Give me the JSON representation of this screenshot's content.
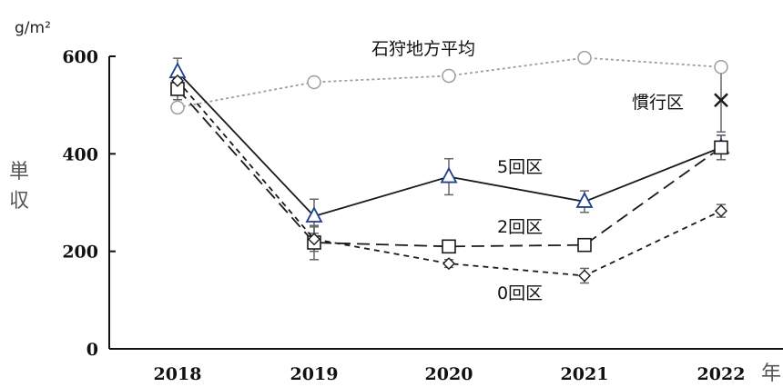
{
  "chart_data": {
    "type": "line",
    "unit_label": "g/m²",
    "ylabel": "単収",
    "xlabel": "年",
    "ylim": [
      0,
      600
    ],
    "yticks": [
      0,
      200,
      400,
      600
    ],
    "categories": [
      "2018",
      "2019",
      "2020",
      "2021",
      "2022"
    ],
    "series": [
      {
        "name": "石狩地方平均",
        "values": [
          495,
          547,
          560,
          597,
          578
        ],
        "errors": [
          null,
          null,
          null,
          null,
          null
        ],
        "marker": "circle",
        "line": "dotted",
        "color": "#9e9e9e"
      },
      {
        "name": "5回区",
        "values": [
          568,
          272,
          353,
          302,
          413
        ],
        "errors": [
          28,
          35,
          37,
          22,
          25
        ],
        "marker": "triangle",
        "line": "solid",
        "color": "#1a1a1a",
        "marker_color": "#1f3f8f"
      },
      {
        "name": "2回区",
        "values": [
          533,
          218,
          210,
          213,
          413
        ],
        "errors": [
          22,
          35,
          12,
          10,
          25
        ],
        "marker": "square",
        "line": "dashed",
        "color": "#1a1a1a"
      },
      {
        "name": "0回区",
        "values": [
          550,
          225,
          175,
          150,
          283
        ],
        "errors": [
          20,
          25,
          8,
          15,
          13
        ],
        "marker": "diamond",
        "line": "short-dashed",
        "color": "#1a1a1a"
      },
      {
        "name": "慣行区",
        "values": [
          null,
          null,
          null,
          null,
          510
        ],
        "errors": [
          null,
          null,
          null,
          null,
          65
        ],
        "marker": "x",
        "line": "none",
        "color": "#1a1a1a"
      }
    ]
  }
}
